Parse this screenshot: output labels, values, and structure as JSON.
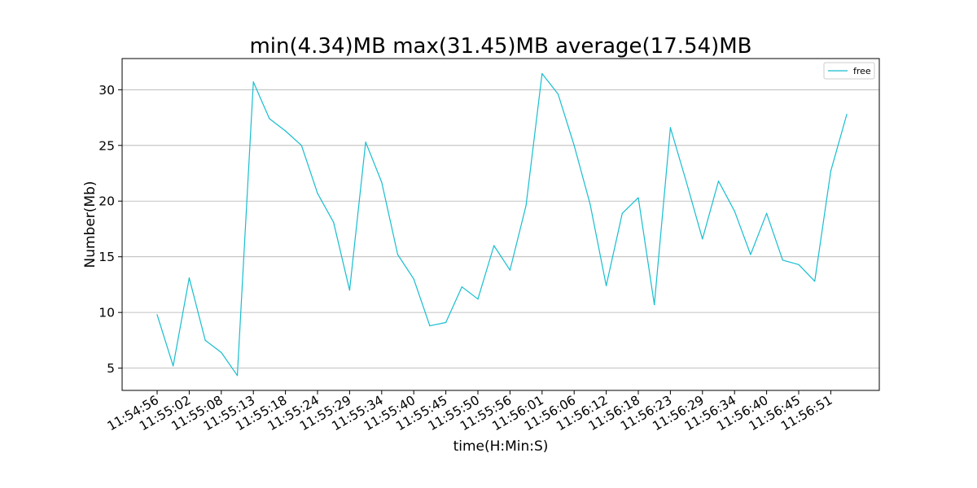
{
  "chart_data": {
    "type": "line",
    "title": "min(4.34)MB max(31.45)MB average(17.54)MB",
    "xlabel": "time(H:Min:S)",
    "ylabel": "Number(Mb)",
    "ylim": [
      3.0,
      32.8
    ],
    "yticks": [
      5,
      10,
      15,
      20,
      25,
      30
    ],
    "grid": "horizontal",
    "legend_position": "top-right",
    "x_tick_labels": [
      "11:54:56",
      "11:55:02",
      "11:55:08",
      "11:55:13",
      "11:55:18",
      "11:55:24",
      "11:55:29",
      "11:55:34",
      "11:55:40",
      "11:55:45",
      "11:55:50",
      "11:55:56",
      "11:56:01",
      "11:56:06",
      "11:56:12",
      "11:56:18",
      "11:56:23",
      "11:56:29",
      "11:56:34",
      "11:56:40",
      "11:56:45",
      "11:56:51"
    ],
    "series": [
      {
        "name": "free",
        "color": "#17becf",
        "values": [
          9.8,
          5.2,
          13.1,
          7.5,
          6.4,
          4.34,
          30.7,
          27.4,
          26.3,
          25.0,
          20.7,
          18.1,
          12.0,
          25.3,
          21.7,
          15.2,
          13.0,
          8.8,
          9.1,
          12.3,
          11.2,
          16.0,
          13.8,
          19.6,
          31.45,
          29.6,
          25.0,
          19.7,
          12.4,
          18.9,
          20.3,
          10.7,
          26.6,
          21.7,
          16.6,
          21.8,
          19.1,
          15.2,
          18.9,
          14.7,
          14.3,
          12.8,
          22.7,
          27.8
        ]
      }
    ]
  }
}
